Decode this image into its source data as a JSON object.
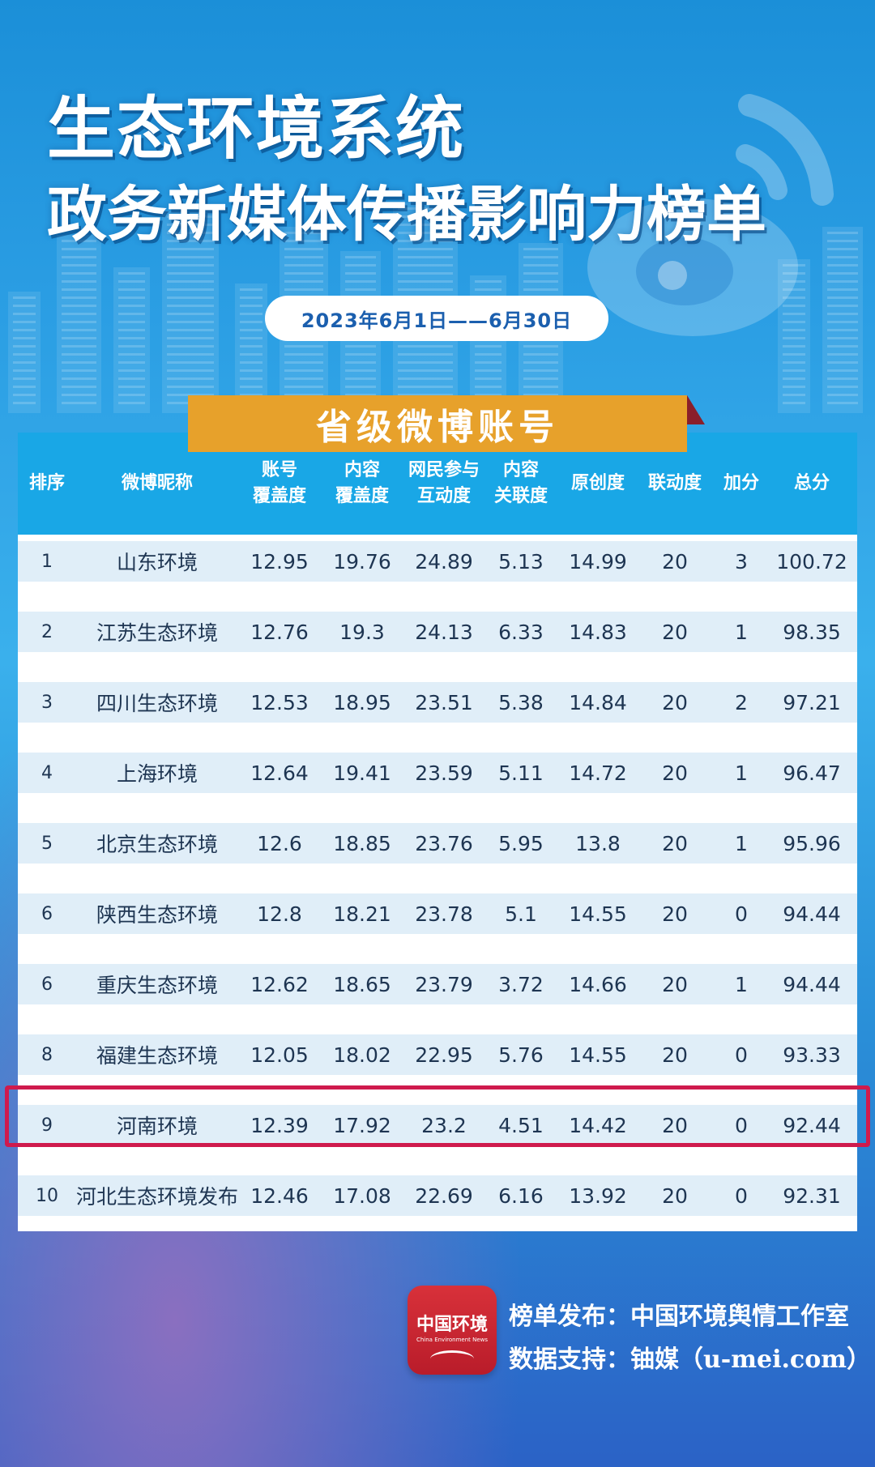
{
  "title_line1": "生态环境系统",
  "title_line2": "政务新媒体传播影响力榜单",
  "date_range": "2023年6月1日——6月30日",
  "category": "省级微博账号",
  "headers": [
    {
      "line1": "排序",
      "line2": ""
    },
    {
      "line1": "微博昵称",
      "line2": ""
    },
    {
      "line1": "账号",
      "line2": "覆盖度"
    },
    {
      "line1": "内容",
      "line2": "覆盖度"
    },
    {
      "line1": "网民参与",
      "line2": "互动度"
    },
    {
      "line1": "内容",
      "line2": "关联度"
    },
    {
      "line1": "原创度",
      "line2": ""
    },
    {
      "line1": "联动度",
      "line2": ""
    },
    {
      "line1": "加分",
      "line2": ""
    },
    {
      "line1": "总分",
      "line2": ""
    }
  ],
  "rows": [
    [
      "1",
      "山东环境",
      "12.95",
      "19.76",
      "24.89",
      "5.13",
      "14.99",
      "20",
      "3",
      "100.72"
    ],
    [
      "2",
      "江苏生态环境",
      "12.76",
      "19.3",
      "24.13",
      "6.33",
      "14.83",
      "20",
      "1",
      "98.35"
    ],
    [
      "3",
      "四川生态环境",
      "12.53",
      "18.95",
      "23.51",
      "5.38",
      "14.84",
      "20",
      "2",
      "97.21"
    ],
    [
      "4",
      "上海环境",
      "12.64",
      "19.41",
      "23.59",
      "5.11",
      "14.72",
      "20",
      "1",
      "96.47"
    ],
    [
      "5",
      "北京生态环境",
      "12.6",
      "18.85",
      "23.76",
      "5.95",
      "13.8",
      "20",
      "1",
      "95.96"
    ],
    [
      "6",
      "陕西生态环境",
      "12.8",
      "18.21",
      "23.78",
      "5.1",
      "14.55",
      "20",
      "0",
      "94.44"
    ],
    [
      "6",
      "重庆生态环境",
      "12.62",
      "18.65",
      "23.79",
      "3.72",
      "14.66",
      "20",
      "1",
      "94.44"
    ],
    [
      "8",
      "福建生态环境",
      "12.05",
      "18.02",
      "22.95",
      "5.76",
      "14.55",
      "20",
      "0",
      "93.33"
    ],
    [
      "9",
      "河南环境",
      "12.39",
      "17.92",
      "23.2",
      "4.51",
      "14.42",
      "20",
      "0",
      "92.44"
    ],
    [
      "10",
      "河北生态环境发布",
      "12.46",
      "17.08",
      "22.69",
      "6.16",
      "13.92",
      "20",
      "0",
      "92.31"
    ]
  ],
  "highlighted_row": "9",
  "logo": {
    "name": "中国环境",
    "subtitle": "China Environment News"
  },
  "footer": {
    "publisher": "榜单发布：中国环境舆情工作室",
    "data_support": "数据支持：铀媒（u-mei.com）"
  },
  "colors": {
    "header_bg": "#19a7e6",
    "banner": "#e7a12b",
    "highlight": "#cf1a4d",
    "row_band": "#e0eef8"
  }
}
